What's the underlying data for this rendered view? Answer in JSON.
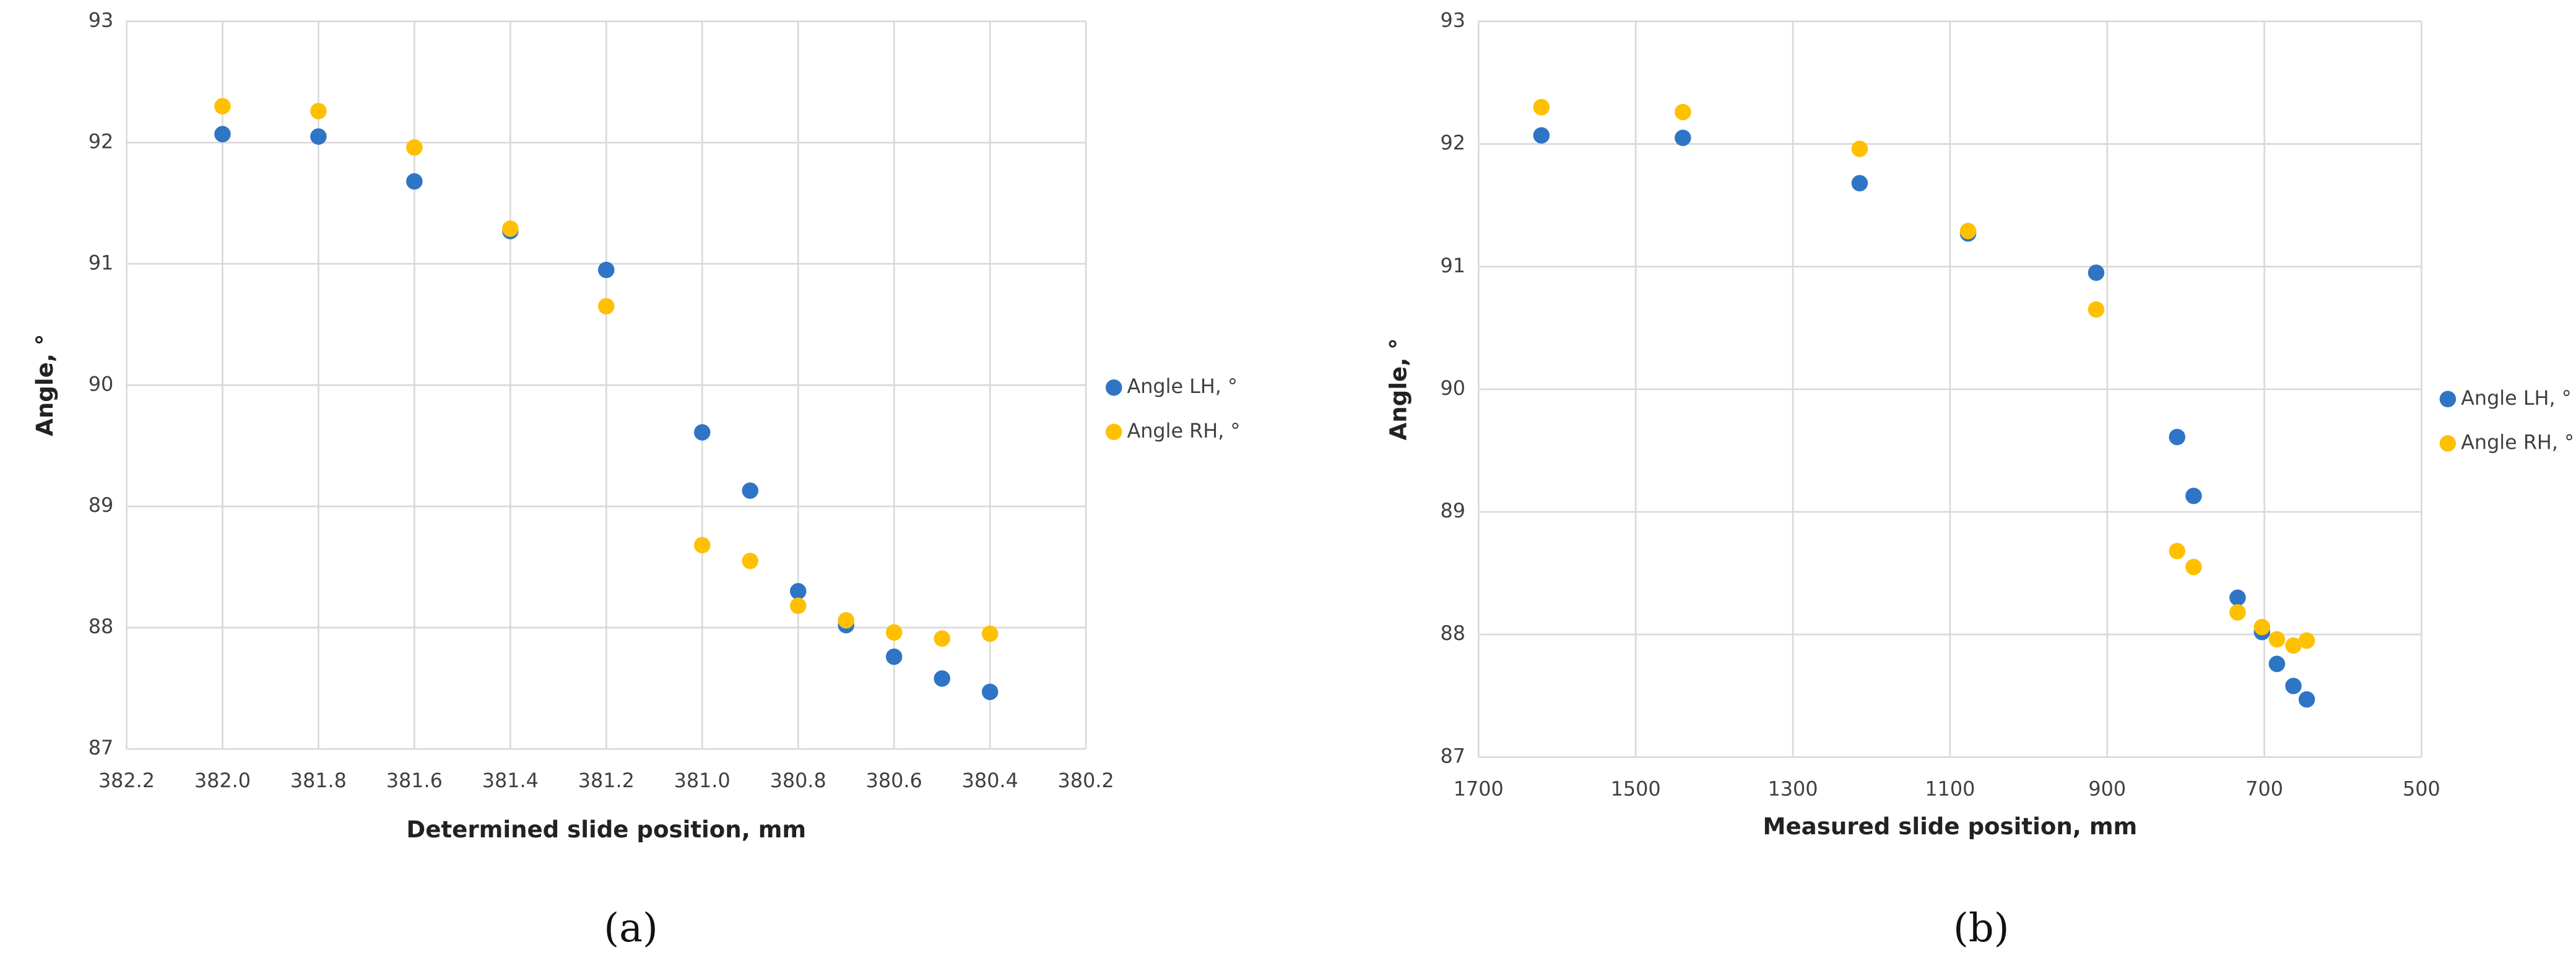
{
  "chart_data": [
    {
      "type": "scatter",
      "caption": "(a)",
      "x_label": "Determined slide position, mm",
      "y_label": "Angle, °",
      "x": [
        382.0,
        381.8,
        381.6,
        381.4,
        381.2,
        381.0,
        380.9,
        380.8,
        380.7,
        380.6,
        380.5,
        380.4
      ],
      "series": [
        {
          "name": "Angle LH, °",
          "color": "#2e75c6",
          "values": [
            92.07,
            92.05,
            91.68,
            91.27,
            90.95,
            89.61,
            89.13,
            88.3,
            88.02,
            87.76,
            87.58,
            87.47
          ]
        },
        {
          "name": "Angle RH, °",
          "color": "#ffc000",
          "values": [
            92.3,
            92.26,
            91.96,
            91.29,
            90.65,
            88.68,
            88.55,
            88.18,
            88.06,
            87.96,
            87.91,
            87.95
          ]
        }
      ],
      "xlim": [
        382.2,
        380.2
      ],
      "xticks": [
        382.2,
        {
          "value": 382,
          "label": "382.0"
        },
        381.8,
        381.6,
        381.4,
        381.2,
        {
          "value": 381,
          "label": "381.0"
        },
        380.8,
        380.6,
        380.4,
        380.2
      ],
      "ylim": [
        87,
        93
      ],
      "yticks": [
        87,
        88,
        89,
        90,
        91,
        92,
        93
      ],
      "grid": true,
      "legend": "right"
    },
    {
      "type": "scatter",
      "caption": "(b)",
      "x_label": "Measured slide position, mm",
      "y_label": "Angle, °",
      "x": [
        1620,
        1440,
        1215,
        1077,
        914,
        811,
        790,
        734,
        703,
        684,
        663,
        646
      ],
      "series": [
        {
          "name": "Angle LH, °",
          "color": "#2e75c6",
          "values": [
            92.07,
            92.05,
            91.68,
            91.27,
            90.95,
            89.61,
            89.13,
            88.3,
            88.02,
            87.76,
            87.58,
            87.47
          ]
        },
        {
          "name": "Angle RH, °",
          "color": "#ffc000",
          "values": [
            92.3,
            92.26,
            91.96,
            91.29,
            90.65,
            88.68,
            88.55,
            88.18,
            88.06,
            87.96,
            87.91,
            87.95
          ]
        }
      ],
      "xlim": [
        1700,
        500
      ],
      "xticks": [
        1700,
        1500,
        1300,
        1100,
        900,
        700,
        500
      ],
      "ylim": [
        87,
        93
      ],
      "yticks": [
        87,
        88,
        89,
        90,
        91,
        92,
        93
      ],
      "grid": true,
      "legend": "right"
    }
  ]
}
